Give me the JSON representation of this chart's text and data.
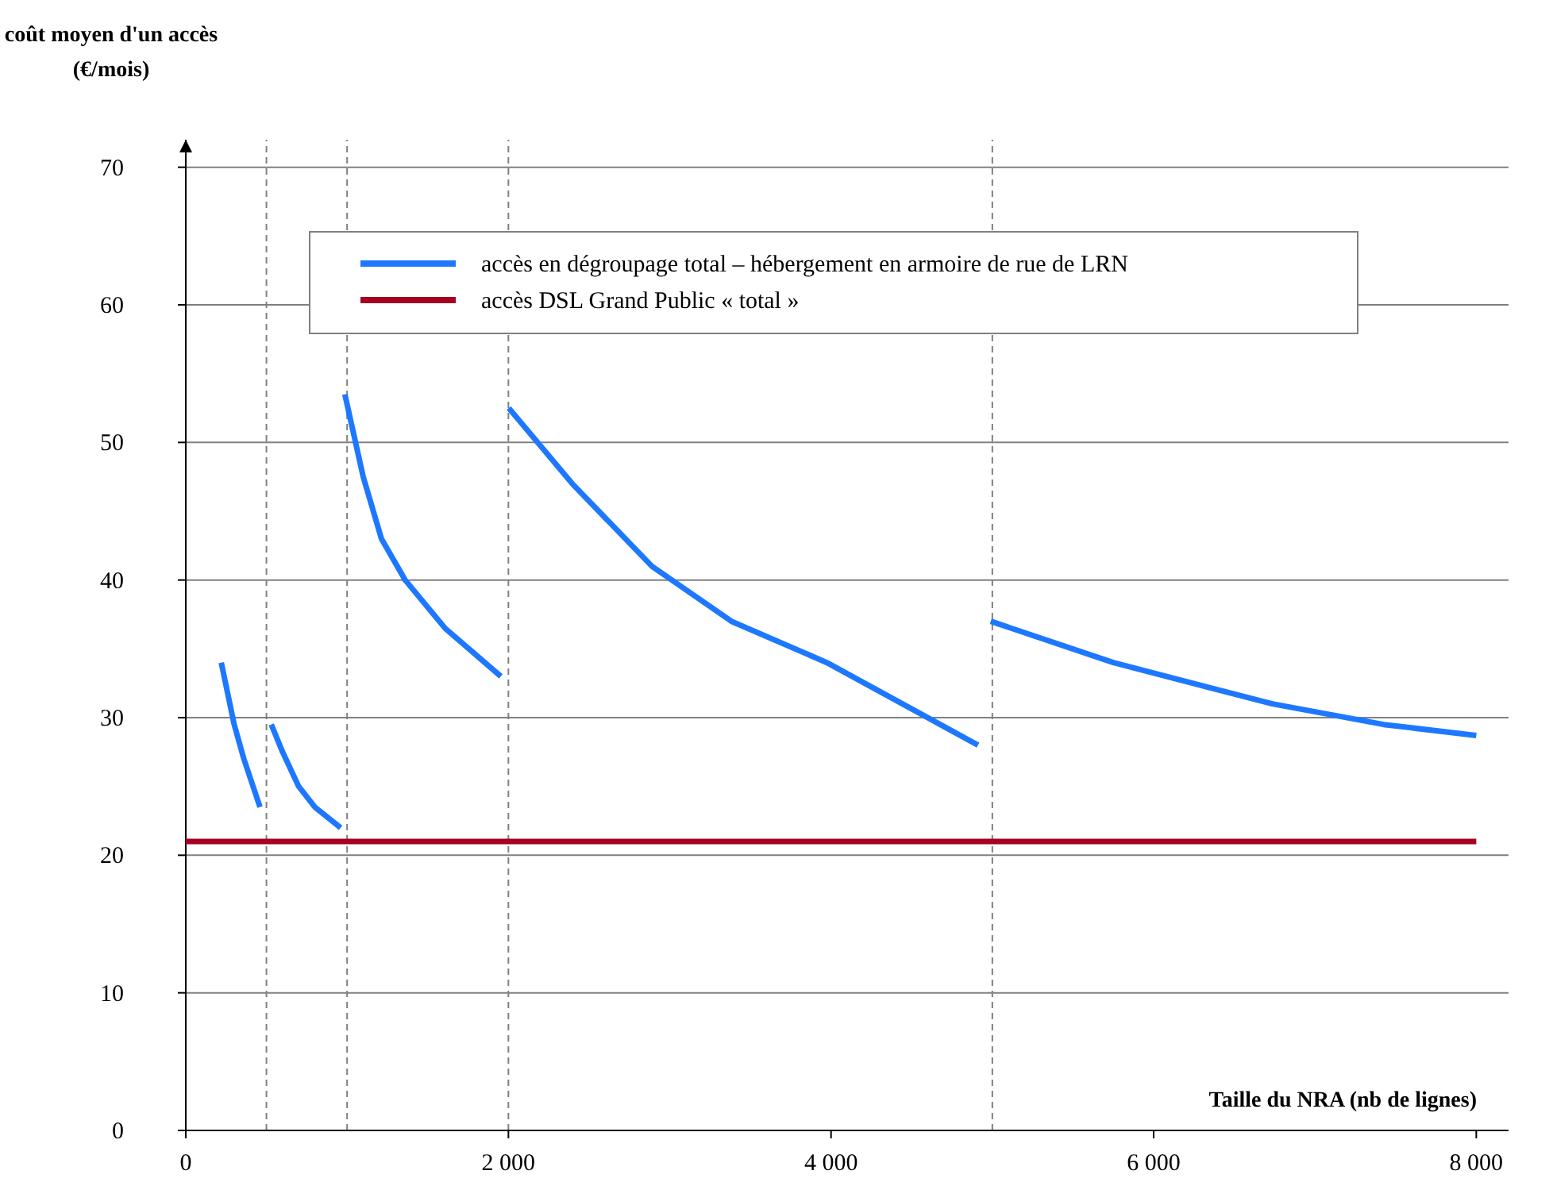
{
  "chart_data": {
    "type": "line",
    "xlabel": "Taille du NRA (nb de lignes)",
    "ylabel": "coût moyen d'un accès\n(€/mois)",
    "xlim": [
      0,
      8200
    ],
    "ylim": [
      0,
      72
    ],
    "xticks": [
      0,
      {
        "value": 2000,
        "label": "2 000"
      },
      {
        "value": 4000,
        "label": "4 000"
      },
      {
        "value": 6000,
        "label": "6 000"
      },
      {
        "value": 8000,
        "label": "8 000"
      }
    ],
    "yticks": [
      0,
      10,
      20,
      30,
      40,
      50,
      60,
      70
    ],
    "grid": "y",
    "legend": "top",
    "marker": "none",
    "line_style": "solid",
    "series": [
      {
        "name": "accès en dégroupage total – hébergement en armoire de rue de LRN",
        "color": "#1e78ff",
        "x": [
          220,
          300,
          360,
          460,
          480,
          530,
          600,
          700,
          800,
          960,
          975,
          986,
          1100,
          1213,
          1360,
          1607,
          1953,
          1980,
          2002,
          2396,
          2890,
          3383,
          3974,
          4911,
          4950,
          4990,
          5750,
          6736,
          7426,
          8000
        ],
        "values": [
          34,
          29.5,
          27,
          23.5,
          null,
          29.5,
          27.5,
          25,
          23.5,
          22,
          null,
          53.5,
          47.5,
          43,
          40,
          36.5,
          33,
          null,
          52.5,
          47,
          41,
          37,
          34,
          28,
          null,
          37,
          34,
          31,
          29.5,
          28.7
        ]
      },
      {
        "name": "accès DSL Grand Public « total »",
        "color": "#a50021",
        "x": [
          0,
          8000
        ],
        "values": [
          21,
          21
        ]
      }
    ],
    "ref_lines": [
      {
        "axis": "x",
        "value": 500,
        "color": "#808080",
        "line_style": "dashed"
      },
      {
        "axis": "x",
        "value": 1000,
        "color": "#808080",
        "line_style": "dashed"
      },
      {
        "axis": "x",
        "value": 2000,
        "color": "#808080",
        "line_style": "dashed"
      },
      {
        "axis": "x",
        "value": 5000,
        "color": "#808080",
        "line_style": "dashed"
      }
    ]
  }
}
